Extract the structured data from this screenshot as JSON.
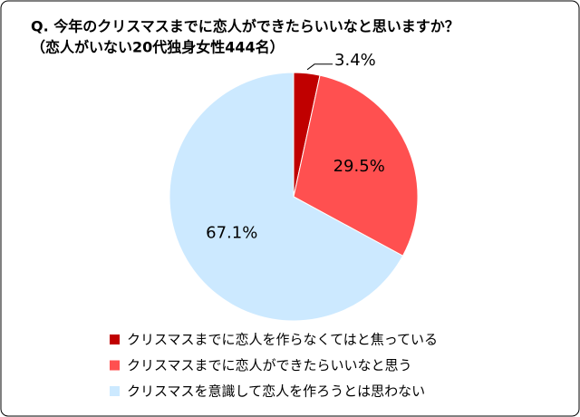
{
  "chart_data": {
    "type": "pie",
    "title": "Q. 今年のクリスマスまでに恋人ができたらいいなと思いますか？",
    "subtitle": "（恋人がいない20代独身女性444名）",
    "categories": [
      "クリスマスまでに恋人を作らなくてはと焦っている",
      "クリスマスまでに恋人ができたらいいなと思う",
      "クリスマスを意識して恋人を作ろうとは思わない"
    ],
    "values": [
      3.4,
      29.5,
      67.1
    ],
    "value_labels": [
      "3.4%",
      "29.5%",
      "67.1%"
    ],
    "colors": [
      "#c00000",
      "#ff5050",
      "#cce9ff"
    ]
  }
}
